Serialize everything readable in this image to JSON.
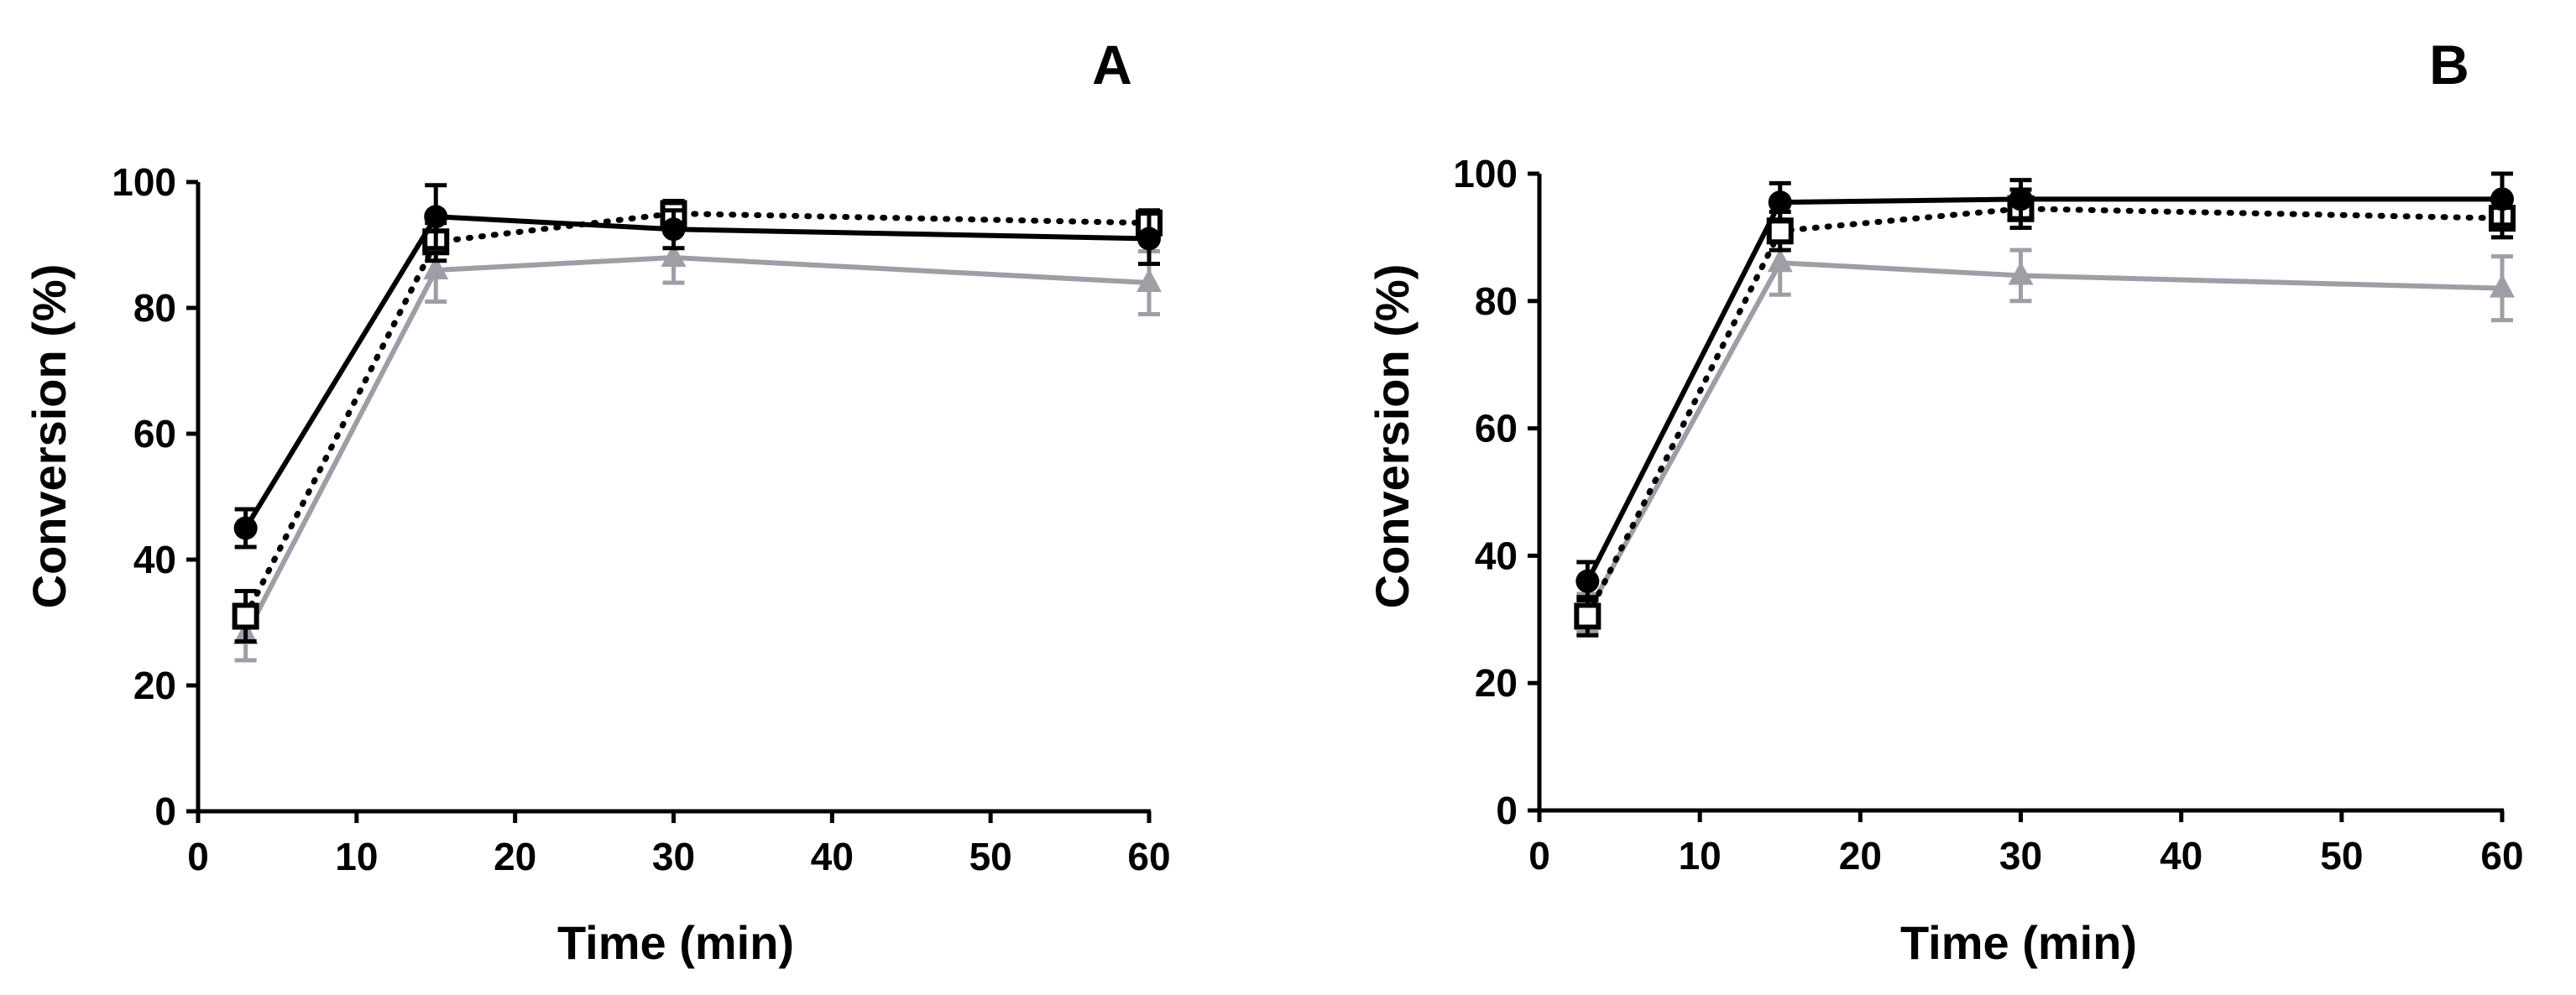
{
  "colors": {
    "black": "#000000",
    "gray": "#9e9ea6"
  },
  "chart_data": [
    {
      "type": "line",
      "title": "A",
      "xlabel": "Time (min)",
      "ylabel": "Conversion (%)",
      "xlim": [
        0,
        60
      ],
      "ylim": [
        0,
        100
      ],
      "xticks": [
        "0",
        "10",
        "20",
        "30",
        "40",
        "50",
        "60"
      ],
      "yticks": [
        "0",
        "20",
        "40",
        "60",
        "80",
        "100"
      ],
      "x": [
        3,
        15,
        30,
        60
      ],
      "series": [
        {
          "name": "filled-circle",
          "color": "#000000",
          "style": "solid",
          "marker": "circle",
          "values": [
            45,
            94.5,
            92.5,
            91
          ],
          "errors": [
            3,
            5,
            3,
            4
          ]
        },
        {
          "name": "open-square",
          "color": "#000000",
          "style": "dotted",
          "marker": "square",
          "values": [
            31,
            90.5,
            95,
            93.5
          ],
          "errors": [
            4,
            3,
            2,
            2
          ]
        },
        {
          "name": "gray-triangle",
          "color": "#9e9ea6",
          "style": "solid",
          "marker": "triangle",
          "values": [
            28,
            86,
            88,
            84
          ],
          "errors": [
            4,
            5,
            4,
            5
          ]
        }
      ]
    },
    {
      "type": "line",
      "title": "B",
      "xlabel": "Time (min)",
      "ylabel": "Conversion (%)",
      "xlim": [
        0,
        60
      ],
      "ylim": [
        0,
        100
      ],
      "xticks": [
        "0",
        "10",
        "20",
        "30",
        "40",
        "50",
        "60"
      ],
      "yticks": [
        "0",
        "20",
        "40",
        "60",
        "80",
        "100"
      ],
      "x": [
        3,
        15,
        30,
        60
      ],
      "series": [
        {
          "name": "filled-circle",
          "color": "#000000",
          "style": "solid",
          "marker": "circle",
          "values": [
            36,
            95.5,
            96,
            96
          ],
          "errors": [
            3,
            3,
            3,
            4
          ]
        },
        {
          "name": "open-square",
          "color": "#000000",
          "style": "dotted",
          "marker": "square",
          "values": [
            30.5,
            91,
            94.5,
            93
          ],
          "errors": [
            3,
            3,
            3,
            3
          ]
        },
        {
          "name": "gray-triangle",
          "color": "#9e9ea6",
          "style": "solid",
          "marker": "triangle",
          "values": [
            31,
            86,
            84,
            82
          ],
          "errors": [
            3,
            5,
            4,
            5
          ]
        }
      ]
    }
  ]
}
